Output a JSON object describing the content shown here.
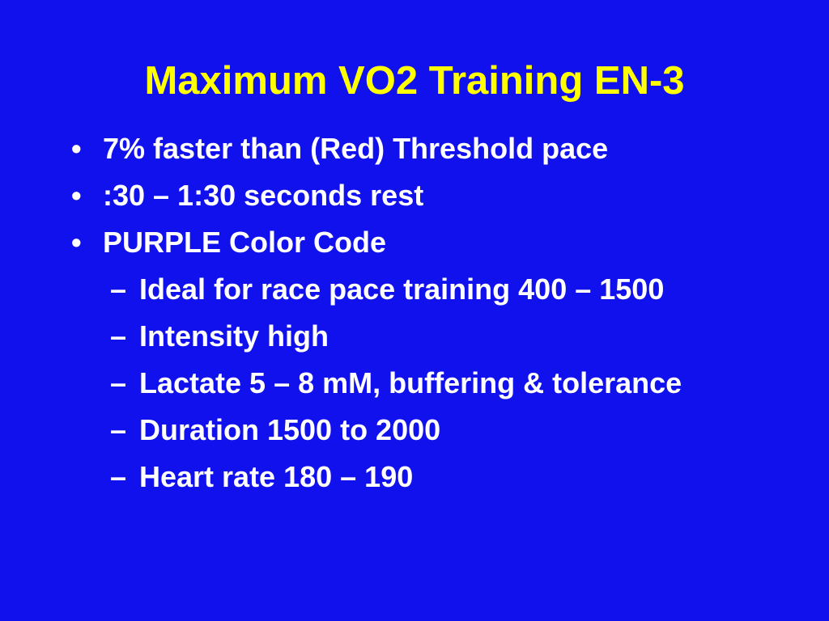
{
  "title": "Maximum VO2 Training EN-3",
  "bullets": [
    {
      "text": "7% faster than (Red) Threshold pace",
      "level": 1
    },
    {
      "text": ":30 – 1:30 seconds rest",
      "level": 1
    },
    {
      "text": "PURPLE Color Code",
      "level": 1
    },
    {
      "text": "Ideal for race pace training 400 – 1500",
      "level": 2
    },
    {
      "text": "Intensity high",
      "level": 2
    },
    {
      "text": "Lactate 5 – 8 mM, buffering & tolerance",
      "level": 2
    },
    {
      "text": "Duration 1500 to 2000",
      "level": 2
    },
    {
      "text": "Heart rate 180 – 190",
      "level": 2
    }
  ]
}
